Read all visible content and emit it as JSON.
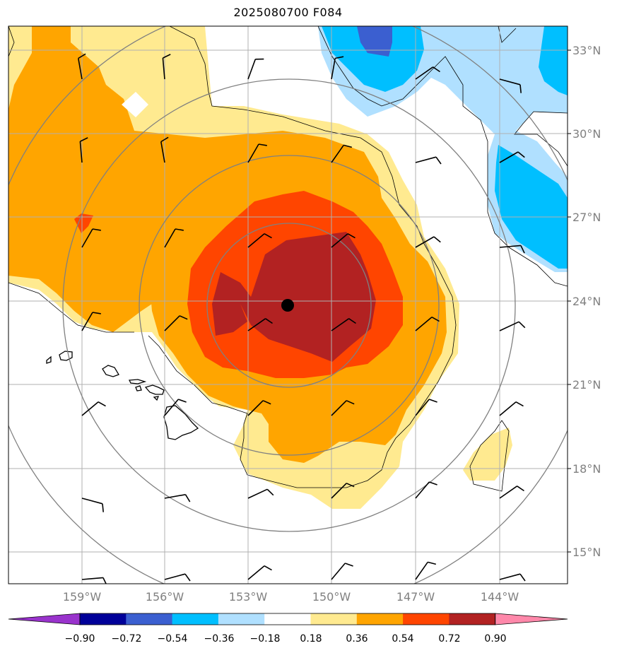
{
  "title": "2025080700 F084",
  "map": {
    "lat_labels": [
      "33°N",
      "30°N",
      "27°N",
      "24°N",
      "21°N",
      "18°N",
      "15°N"
    ],
    "lon_labels": [
      "159°W",
      "156°W",
      "153°W",
      "150°W",
      "147°W",
      "144°W"
    ],
    "center_marker": {
      "lat": 23.9,
      "lon": -151.4
    }
  },
  "colorbar": {
    "ticks": [
      "−0.90",
      "−0.72",
      "−0.54",
      "−0.36",
      "−0.18",
      "0.18",
      "0.36",
      "0.54",
      "0.72",
      "0.90"
    ],
    "colors": [
      "#9933cc",
      "#000099",
      "#3b5fd0",
      "#00bfff",
      "#b0e0ff",
      "#ffffff",
      "#ffea90",
      "#ffa500",
      "#ff4500",
      "#b22222",
      "#ff88aa"
    ]
  }
}
